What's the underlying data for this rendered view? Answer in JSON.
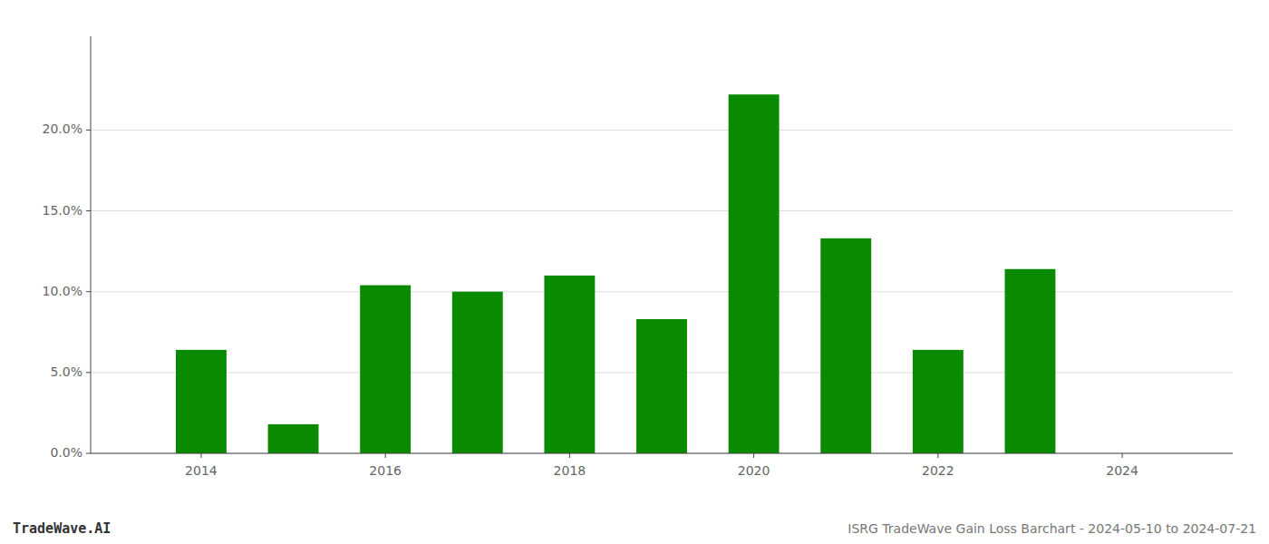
{
  "chart_data": {
    "type": "bar",
    "title": "ISRG TradeWave Gain Loss Barchart - 2024-05-10 to 2024-07-21",
    "annotations": [
      "TradeWave.AI"
    ],
    "x": [
      2014,
      2015,
      2016,
      2017,
      2018,
      2019,
      2020,
      2021,
      2022,
      2023,
      2024
    ],
    "values": [
      0.064,
      0.018,
      0.104,
      0.1,
      0.11,
      0.083,
      0.222,
      0.133,
      0.064,
      0.114,
      0.0
    ],
    "color": "#0a8a00",
    "xlim": [
      2012.8,
      2025.2
    ],
    "xticks": [
      2014,
      2016,
      2018,
      2020,
      2022,
      2024
    ],
    "ylim": [
      0,
      0.258
    ],
    "yticks": [
      {
        "value": 0.0,
        "label": "0.0%"
      },
      {
        "value": 0.05,
        "label": "5.0%"
      },
      {
        "value": 0.1,
        "label": "10.0%"
      },
      {
        "value": 0.15,
        "label": "15.0%"
      },
      {
        "value": 0.2,
        "label": "20.0%"
      }
    ],
    "grid": true
  }
}
